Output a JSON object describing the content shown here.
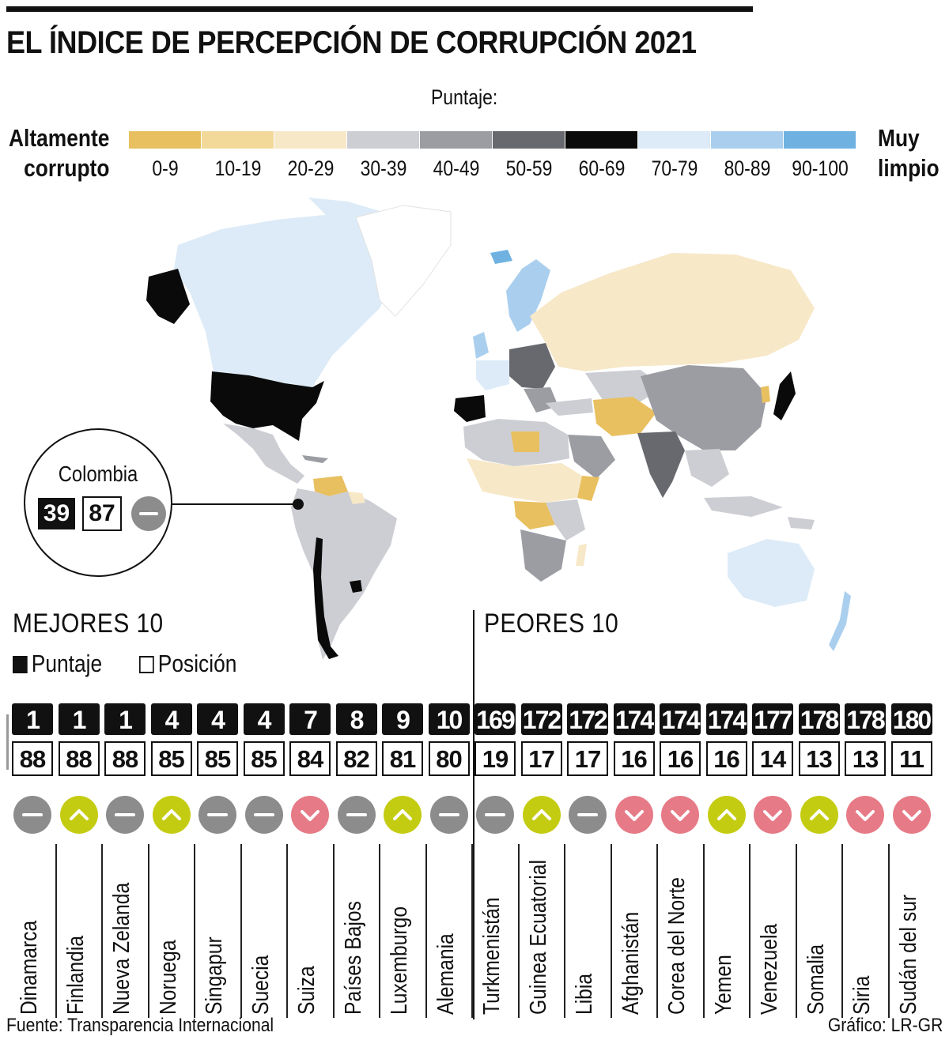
{
  "title": "EL ÍNDICE DE PERCEPCIÓN DE CORRUPCIÓN 2021",
  "legend": {
    "label": "Puntaje:",
    "left_line1": "Altamente",
    "left_line2": "corrupto",
    "right_line1": "Muy",
    "right_line2": "limpio",
    "bins": [
      {
        "label": "0-9",
        "color": "#e8c060"
      },
      {
        "label": "10-19",
        "color": "#f2d99a"
      },
      {
        "label": "20-29",
        "color": "#f7e8c8"
      },
      {
        "label": "30-39",
        "color": "#cdced3"
      },
      {
        "label": "40-49",
        "color": "#9c9da3"
      },
      {
        "label": "50-59",
        "color": "#68696e"
      },
      {
        "label": "60-69",
        "color": "#0a0a0a"
      },
      {
        "label": "70-79",
        "color": "#dcebf7"
      },
      {
        "label": "80-89",
        "color": "#aacfee"
      },
      {
        "label": "90-100",
        "color": "#6fb2e2"
      }
    ]
  },
  "callout": {
    "country": "Colombia",
    "score": "39",
    "rank": "87",
    "trend": "same"
  },
  "best": {
    "heading": "MEJORES 10",
    "key_score": "Puntaje",
    "key_rank": "Posición",
    "items": [
      {
        "score": "1",
        "rank": "88",
        "trend": "same",
        "name": "Dinamarca"
      },
      {
        "score": "1",
        "rank": "88",
        "trend": "up",
        "name": "Finlandia"
      },
      {
        "score": "1",
        "rank": "88",
        "trend": "same",
        "name": "Nueva Zelanda"
      },
      {
        "score": "4",
        "rank": "85",
        "trend": "up",
        "name": "Noruega"
      },
      {
        "score": "4",
        "rank": "85",
        "trend": "same",
        "name": "Singapur"
      },
      {
        "score": "4",
        "rank": "85",
        "trend": "same",
        "name": "Suecia"
      },
      {
        "score": "7",
        "rank": "84",
        "trend": "down",
        "name": "Suiza"
      },
      {
        "score": "8",
        "rank": "82",
        "trend": "same",
        "name": "Países Bajos"
      },
      {
        "score": "9",
        "rank": "81",
        "trend": "up",
        "name": "Luxemburgo"
      },
      {
        "score": "10",
        "rank": "80",
        "trend": "same",
        "name": "Alemania"
      }
    ]
  },
  "worst": {
    "heading": "PEORES 10",
    "items": [
      {
        "score": "169",
        "rank": "19",
        "trend": "same",
        "name": "Turkmenistán"
      },
      {
        "score": "172",
        "rank": "17",
        "trend": "up",
        "name": "Guinea Ecuatorial"
      },
      {
        "score": "172",
        "rank": "17",
        "trend": "same",
        "name": "Libia"
      },
      {
        "score": "174",
        "rank": "16",
        "trend": "down",
        "name": "Afghanistán"
      },
      {
        "score": "174",
        "rank": "16",
        "trend": "down",
        "name": "Corea del Norte"
      },
      {
        "score": "174",
        "rank": "16",
        "trend": "up",
        "name": "Yemen"
      },
      {
        "score": "177",
        "rank": "14",
        "trend": "down",
        "name": "Venezuela"
      },
      {
        "score": "178",
        "rank": "13",
        "trend": "up",
        "name": "Somalia"
      },
      {
        "score": "178",
        "rank": "13",
        "trend": "down",
        "name": "Siria"
      },
      {
        "score": "180",
        "rank": "11",
        "trend": "down",
        "name": "Sudán del sur"
      }
    ]
  },
  "trend_colors": {
    "same": "#8c8c8c",
    "up": "#c4cc12",
    "down": "#e67a86"
  },
  "footer": {
    "source": "Fuente: Transparencia Internacional",
    "credit": "Gráfico: LR-GR"
  }
}
